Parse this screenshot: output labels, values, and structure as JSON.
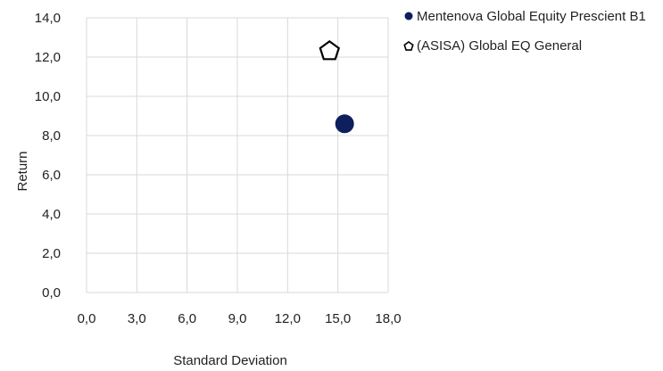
{
  "chart_data": {
    "type": "scatter",
    "title": "",
    "xlabel": "Standard Deviation",
    "ylabel": "Return",
    "xlim": [
      0,
      18
    ],
    "ylim": [
      0,
      14
    ],
    "x_ticks": [
      "0,0",
      "3,0",
      "6,0",
      "9,0",
      "12,0",
      "15,0",
      "18,0"
    ],
    "y_ticks": [
      "0,0",
      "2,0",
      "4,0",
      "6,0",
      "8,0",
      "10,0",
      "12,0",
      "14,0"
    ],
    "grid": true,
    "legend_position": "top-right",
    "series": [
      {
        "name": "Mentenova Global Equity Prescient B1",
        "marker": "circle",
        "color": "#0d1f5c",
        "points": [
          {
            "x": 15.4,
            "y": 8.6
          }
        ]
      },
      {
        "name": "(ASISA) Global EQ General",
        "marker": "pentagon",
        "color": "#000000",
        "points": [
          {
            "x": 14.5,
            "y": 12.3
          }
        ]
      }
    ]
  }
}
